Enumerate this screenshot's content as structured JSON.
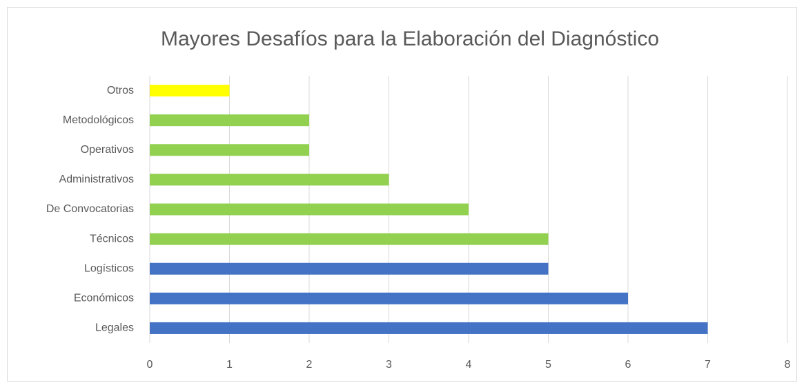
{
  "chart_data": {
    "type": "barh",
    "title": "Mayores Desafíos para la Elaboración del Diagnóstico",
    "categories": [
      "Otros",
      "Metodológicos",
      "Operativos",
      "Administrativos",
      "De Convocatorias",
      "Técnicos",
      "Logísticos",
      "Económicos",
      "Legales"
    ],
    "values": [
      1,
      2,
      2,
      3,
      4,
      5,
      5,
      6,
      7
    ],
    "colors": [
      "#ffff00",
      "#92d050",
      "#92d050",
      "#92d050",
      "#92d050",
      "#92d050",
      "#4472c4",
      "#4472c4",
      "#4472c4"
    ],
    "xlim": [
      0,
      8
    ],
    "xticks": [
      0,
      1,
      2,
      3,
      4,
      5,
      6,
      7,
      8
    ],
    "grid": true
  }
}
